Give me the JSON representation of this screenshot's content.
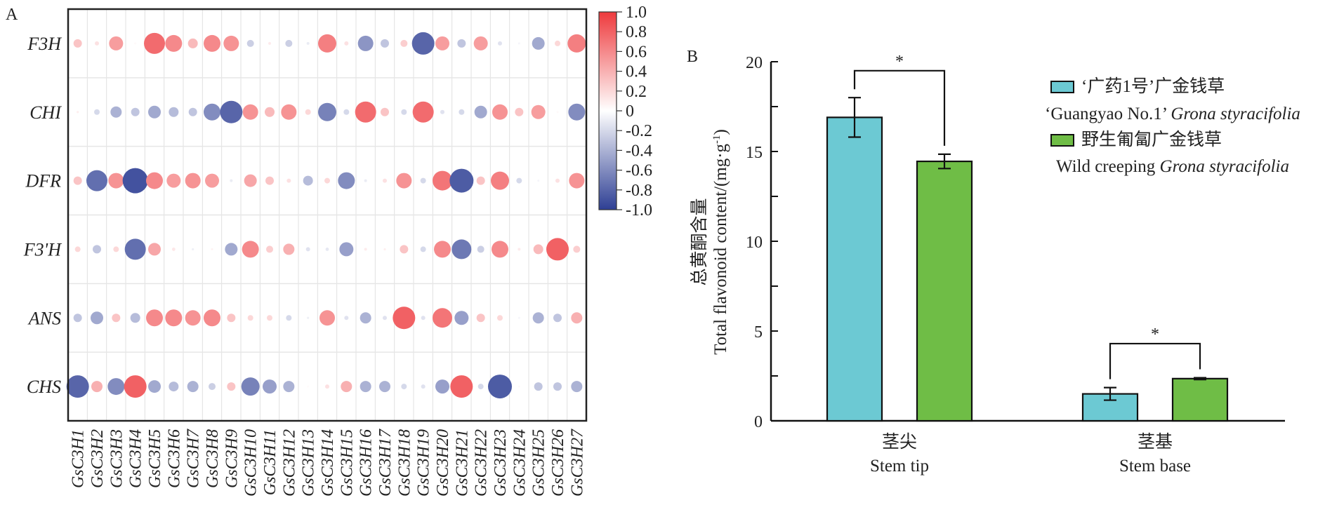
{
  "chart_data": [
    {
      "panel": "A",
      "type": "heatmap",
      "subtype": "bubble-correlation",
      "rows": [
        "F3H",
        "CHI",
        "DFR",
        "F3'H",
        "ANS",
        "CHS"
      ],
      "columns": [
        "GsC3H1",
        "GsC3H2",
        "GsC3H3",
        "GsC3H4",
        "GsC3H5",
        "GsC3H6",
        "GsC3H7",
        "GsC3H8",
        "GsC3H9",
        "GsC3H10",
        "GsC3H11",
        "GsC3H12",
        "GsC3H13",
        "GsC3H14",
        "GsC3H15",
        "GsC3H16",
        "GsC3H17",
        "GsC3H18",
        "GsC3H19",
        "GsC3H20",
        "GsC3H21",
        "GsC3H22",
        "GsC3H23",
        "GsC3H24",
        "GsC3H25",
        "GsC3H26",
        "GsC3H27"
      ],
      "values": [
        [
          0.3,
          0.15,
          0.5,
          0.03,
          0.75,
          0.6,
          0.35,
          0.6,
          0.55,
          -0.25,
          0.1,
          -0.25,
          -0.1,
          0.65,
          0.15,
          -0.55,
          -0.3,
          0.25,
          -0.8,
          0.5,
          -0.3,
          0.5,
          -0.15,
          -0.05,
          -0.45,
          0.2,
          0.65
        ],
        [
          0.08,
          -0.2,
          -0.4,
          -0.3,
          -0.45,
          -0.35,
          -0.3,
          -0.6,
          -0.8,
          0.55,
          0.35,
          0.55,
          0.2,
          -0.65,
          -0.2,
          0.75,
          0.3,
          -0.2,
          0.75,
          -0.15,
          -0.2,
          -0.45,
          0.55,
          0.3,
          0.5,
          0.03,
          -0.6
        ],
        [
          0.3,
          -0.75,
          0.55,
          -0.9,
          0.6,
          0.5,
          0.55,
          0.5,
          -0.1,
          0.45,
          0.3,
          0.15,
          -0.35,
          0.2,
          -0.6,
          -0.1,
          0.15,
          0.55,
          -0.2,
          0.7,
          -0.85,
          0.3,
          0.65,
          -0.2,
          -0.05,
          0.15,
          0.55
        ],
        [
          0.2,
          -0.3,
          0.2,
          -0.75,
          0.45,
          0.12,
          -0.08,
          0.06,
          -0.45,
          0.6,
          0.25,
          0.4,
          -0.15,
          -0.12,
          -0.5,
          0.1,
          0.08,
          0.3,
          -0.2,
          0.6,
          -0.7,
          -0.25,
          0.6,
          0.1,
          0.35,
          0.8,
          0.25
        ],
        [
          -0.3,
          -0.45,
          0.3,
          -0.35,
          0.6,
          0.6,
          0.55,
          0.6,
          0.3,
          0.2,
          0.2,
          -0.2,
          -0.08,
          0.55,
          -0.15,
          -0.4,
          -0.15,
          0.8,
          -0.15,
          0.7,
          -0.5,
          0.3,
          0.2,
          -0.05,
          -0.4,
          -0.3,
          0.4
        ],
        [
          -0.8,
          0.4,
          -0.6,
          0.8,
          -0.45,
          -0.35,
          -0.4,
          -0.25,
          0.3,
          -0.65,
          -0.5,
          -0.4,
          0.02,
          0.15,
          0.4,
          -0.4,
          -0.4,
          -0.2,
          -0.15,
          -0.5,
          0.8,
          -0.2,
          -0.85,
          0.03,
          -0.3,
          -0.3,
          -0.4
        ]
      ],
      "colorbar": {
        "range": [
          -1.0,
          1.0
        ],
        "ticks": [
          "1.0",
          "0.8",
          "0.6",
          "0.4",
          "0.2",
          "0",
          "-0.2",
          "-0.4",
          "-0.6",
          "-0.8",
          "-1.0"
        ],
        "tick_values": [
          1.0,
          0.8,
          0.6,
          0.4,
          0.2,
          0,
          -0.2,
          -0.4,
          -0.6,
          -0.8,
          -1.0
        ],
        "low_color": "#2e3f94",
        "mid_color": "#ffffff",
        "high_color": "#ee3a3d",
        "placement": "right"
      },
      "grid": true
    },
    {
      "panel": "B",
      "type": "bar",
      "categories": [
        {
          "zh": "茎尖",
          "en": "Stem tip"
        },
        {
          "zh": "茎基",
          "en": "Stem base"
        }
      ],
      "series": [
        {
          "name_zh": "‘广药1号’广金钱草",
          "name_en_prefix": "‘Guangyao No.1’ ",
          "name_en_italic": "Grona styracifolia",
          "color": "#6cc9d3",
          "values": [
            16.9,
            1.5
          ],
          "errors": [
            1.1,
            0.35
          ]
        },
        {
          "name_zh": "野生匍匐广金钱草",
          "name_en_prefix": "Wild creeping ",
          "name_en_italic": "Grona styracifolia",
          "color": "#6fbd46",
          "values": [
            14.45,
            2.35
          ],
          "errors": [
            0.4,
            0.05
          ]
        }
      ],
      "significance": [
        {
          "category": 0,
          "label": "*",
          "bracket_level": 19.5
        },
        {
          "category": 1,
          "label": "*",
          "bracket_level": 4.3
        }
      ],
      "ylabel_zh": "总黄酮含量",
      "ylabel_en": "Total flavonoid content/(mg·g",
      "ylabel_sup": "-1",
      "ylabel_close": ")",
      "ylim": [
        0,
        20
      ],
      "yticks": [
        0,
        5,
        10,
        15,
        20
      ],
      "legend_placement": "top-right"
    }
  ],
  "labels": {
    "panel_a": "A",
    "panel_b": "B"
  }
}
